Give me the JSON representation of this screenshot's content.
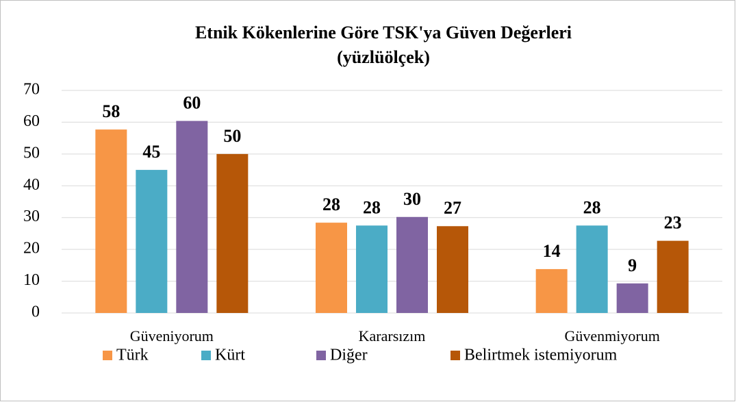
{
  "chart_data": {
    "type": "bar",
    "title": "Etnik Kökenlerine Göre TSK'ya Güven Değerleri",
    "subtitle": "(yüzlüölçek)",
    "categories": [
      "Güveniyorum",
      "Kararsızım",
      "Güvenmiyorum"
    ],
    "series": [
      {
        "name": "Türk",
        "color": "#f79646",
        "values": [
          57.7,
          28.4,
          13.8
        ],
        "value_labels": [
          "58",
          "28",
          "14"
        ]
      },
      {
        "name": "Kürt",
        "color": "#4bacc6",
        "values": [
          45,
          27.5,
          27.5
        ],
        "value_labels": [
          "45",
          "28",
          "28"
        ]
      },
      {
        "name": "Diğer",
        "color": "#8064a2",
        "values": [
          60.4,
          30.2,
          9.3
        ],
        "value_labels": [
          "60",
          "30",
          "9"
        ]
      },
      {
        "name": "Belirtmek istemiyorum",
        "color": "#b65708",
        "values": [
          50,
          27.3,
          22.7
        ],
        "value_labels": [
          "50",
          "27",
          "23"
        ]
      }
    ],
    "ylim": [
      0,
      70
    ],
    "yticks": [
      0,
      10,
      20,
      30,
      40,
      50,
      60,
      70
    ],
    "grid": true,
    "legend": "bottom"
  }
}
